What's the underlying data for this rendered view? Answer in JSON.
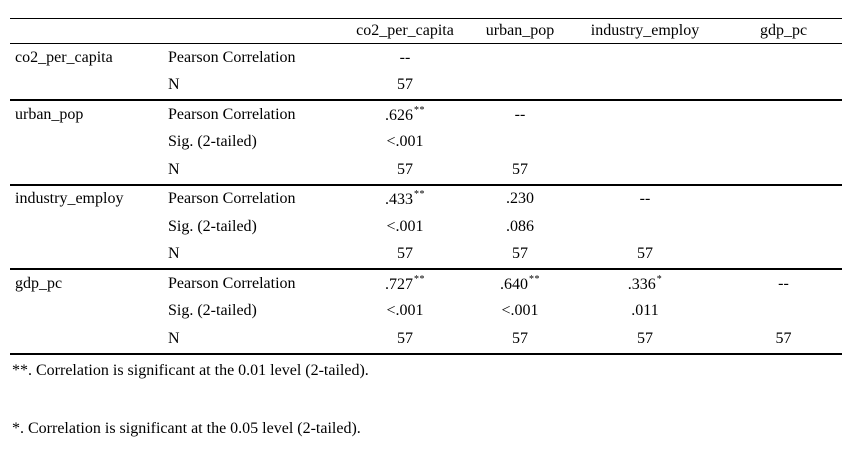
{
  "table": {
    "columns": [
      "co2_per_capita",
      "urban_pop",
      "industry_employ",
      "gdp_pc"
    ],
    "blocks": [
      {
        "variable": "co2_per_capita",
        "rows": [
          {
            "label": "Pearson Correlation",
            "cells": [
              {
                "text": "--",
                "sup": ""
              },
              {
                "text": "",
                "sup": ""
              },
              {
                "text": "",
                "sup": ""
              },
              {
                "text": "",
                "sup": ""
              }
            ]
          },
          {
            "label": "N",
            "cells": [
              {
                "text": "57",
                "sup": ""
              },
              {
                "text": "",
                "sup": ""
              },
              {
                "text": "",
                "sup": ""
              },
              {
                "text": "",
                "sup": ""
              }
            ]
          }
        ]
      },
      {
        "variable": "urban_pop",
        "rows": [
          {
            "label": "Pearson Correlation",
            "cells": [
              {
                "text": ".626",
                "sup": "**"
              },
              {
                "text": "--",
                "sup": ""
              },
              {
                "text": "",
                "sup": ""
              },
              {
                "text": "",
                "sup": ""
              }
            ]
          },
          {
            "label": "Sig. (2-tailed)",
            "cells": [
              {
                "text": "<.001",
                "sup": ""
              },
              {
                "text": "",
                "sup": ""
              },
              {
                "text": "",
                "sup": ""
              },
              {
                "text": "",
                "sup": ""
              }
            ]
          },
          {
            "label": "N",
            "cells": [
              {
                "text": "57",
                "sup": ""
              },
              {
                "text": "57",
                "sup": ""
              },
              {
                "text": "",
                "sup": ""
              },
              {
                "text": "",
                "sup": ""
              }
            ]
          }
        ]
      },
      {
        "variable": "industry_employ",
        "rows": [
          {
            "label": "Pearson Correlation",
            "cells": [
              {
                "text": ".433",
                "sup": "**"
              },
              {
                "text": ".230",
                "sup": ""
              },
              {
                "text": "--",
                "sup": ""
              },
              {
                "text": "",
                "sup": ""
              }
            ]
          },
          {
            "label": "Sig. (2-tailed)",
            "cells": [
              {
                "text": "<.001",
                "sup": ""
              },
              {
                "text": ".086",
                "sup": ""
              },
              {
                "text": "",
                "sup": ""
              },
              {
                "text": "",
                "sup": ""
              }
            ]
          },
          {
            "label": "N",
            "cells": [
              {
                "text": "57",
                "sup": ""
              },
              {
                "text": "57",
                "sup": ""
              },
              {
                "text": "57",
                "sup": ""
              },
              {
                "text": "",
                "sup": ""
              }
            ]
          }
        ]
      },
      {
        "variable": "gdp_pc",
        "rows": [
          {
            "label": "Pearson Correlation",
            "cells": [
              {
                "text": ".727",
                "sup": "**"
              },
              {
                "text": ".640",
                "sup": "**"
              },
              {
                "text": ".336",
                "sup": "*"
              },
              {
                "text": "--",
                "sup": ""
              }
            ]
          },
          {
            "label": "Sig. (2-tailed)",
            "cells": [
              {
                "text": "<.001",
                "sup": ""
              },
              {
                "text": "<.001",
                "sup": ""
              },
              {
                "text": ".011",
                "sup": ""
              },
              {
                "text": "",
                "sup": ""
              }
            ]
          },
          {
            "label": "N",
            "cells": [
              {
                "text": "57",
                "sup": ""
              },
              {
                "text": "57",
                "sup": ""
              },
              {
                "text": "57",
                "sup": ""
              },
              {
                "text": "57",
                "sup": ""
              }
            ]
          }
        ]
      }
    ]
  },
  "footnotes": [
    "**. Correlation is significant at the 0.01 level (2-tailed).",
    "*. Correlation is significant at the 0.05 level (2-tailed)."
  ],
  "colors": {
    "text": "#000000",
    "background": "#ffffff",
    "rule": "#000000"
  }
}
